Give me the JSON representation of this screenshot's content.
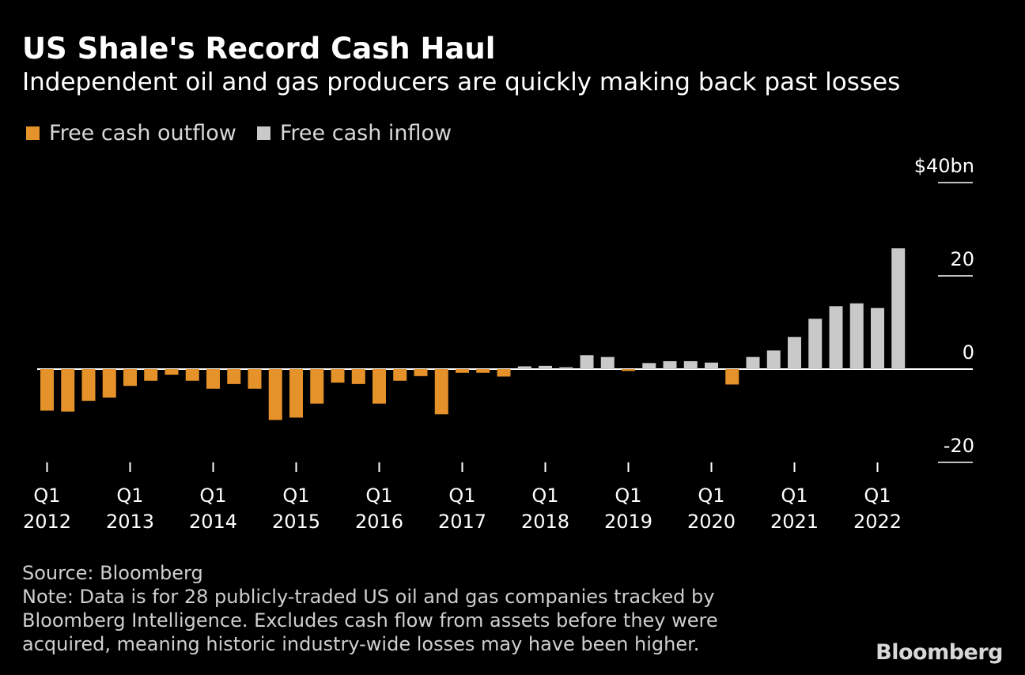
{
  "title": "US Shale's Record Cash Haul",
  "subtitle": "Independent oil and gas producers are quickly making back past losses",
  "legend": [
    {
      "label": "Free cash outflow",
      "color": "#e5922b"
    },
    {
      "label": "Free cash inflow",
      "color": "#c9c9c9"
    }
  ],
  "source": "Source: Bloomberg",
  "note": "Note: Data is for 28 publicly-traded US oil and gas companies tracked by Bloomberg Intelligence. Excludes cash flow from assets before they were acquired, meaning historic industry-wide losses may have been higher.",
  "brand": "Bloomberg",
  "chart_data": {
    "type": "bar",
    "title": "US Shale's Record Cash Haul",
    "ylabel": "$ bn",
    "ylim": [
      -20,
      40
    ],
    "y_ticks": [
      {
        "value": 40,
        "label": "$40bn"
      },
      {
        "value": 20,
        "label": "20"
      },
      {
        "value": 0,
        "label": "0"
      },
      {
        "value": -20,
        "label": "-20"
      }
    ],
    "x_ticks": [
      {
        "index": 0,
        "line1": "Q1",
        "line2": "2012"
      },
      {
        "index": 4,
        "line1": "Q1",
        "line2": "2013"
      },
      {
        "index": 8,
        "line1": "Q1",
        "line2": "2014"
      },
      {
        "index": 12,
        "line1": "Q1",
        "line2": "2015"
      },
      {
        "index": 16,
        "line1": "Q1",
        "line2": "2016"
      },
      {
        "index": 20,
        "line1": "Q1",
        "line2": "2017"
      },
      {
        "index": 24,
        "line1": "Q1",
        "line2": "2018"
      },
      {
        "index": 28,
        "line1": "Q1",
        "line2": "2019"
      },
      {
        "index": 32,
        "line1": "Q1",
        "line2": "2020"
      },
      {
        "index": 36,
        "line1": "Q1",
        "line2": "2021"
      },
      {
        "index": 40,
        "line1": "Q1",
        "line2": "2022"
      }
    ],
    "categories": [
      "Q1 2012",
      "Q2 2012",
      "Q3 2012",
      "Q4 2012",
      "Q1 2013",
      "Q2 2013",
      "Q3 2013",
      "Q4 2013",
      "Q1 2014",
      "Q2 2014",
      "Q3 2014",
      "Q4 2014",
      "Q1 2015",
      "Q2 2015",
      "Q3 2015",
      "Q4 2015",
      "Q1 2016",
      "Q2 2016",
      "Q3 2016",
      "Q4 2016",
      "Q1 2017",
      "Q2 2017",
      "Q3 2017",
      "Q4 2017",
      "Q1 2018",
      "Q2 2018",
      "Q3 2018",
      "Q4 2018",
      "Q1 2019",
      "Q2 2019",
      "Q3 2019",
      "Q4 2019",
      "Q1 2020",
      "Q2 2020",
      "Q3 2020",
      "Q4 2020",
      "Q1 2021",
      "Q2 2021",
      "Q3 2021",
      "Q4 2021",
      "Q1 2022",
      "Q2 2022"
    ],
    "values": [
      -8.9,
      -9.1,
      -6.8,
      -6.1,
      -3.6,
      -2.5,
      -1.2,
      -2.5,
      -4.2,
      -3.2,
      -4.2,
      -10.9,
      -10.4,
      -7.4,
      -2.9,
      -3.2,
      -7.4,
      -2.5,
      -1.5,
      -9.7,
      -0.8,
      -0.8,
      -1.6,
      0.6,
      0.7,
      0.4,
      3.0,
      2.6,
      -0.4,
      1.3,
      1.7,
      1.7,
      1.4,
      -3.3,
      2.6,
      4.0,
      6.9,
      10.8,
      13.5,
      14.1,
      13.1,
      25.9
    ],
    "series": [
      {
        "name": "Free cash outflow",
        "color": "#e5922b",
        "values_rule": "negative values"
      },
      {
        "name": "Free cash inflow",
        "color": "#c9c9c9",
        "values_rule": "positive values"
      }
    ]
  }
}
